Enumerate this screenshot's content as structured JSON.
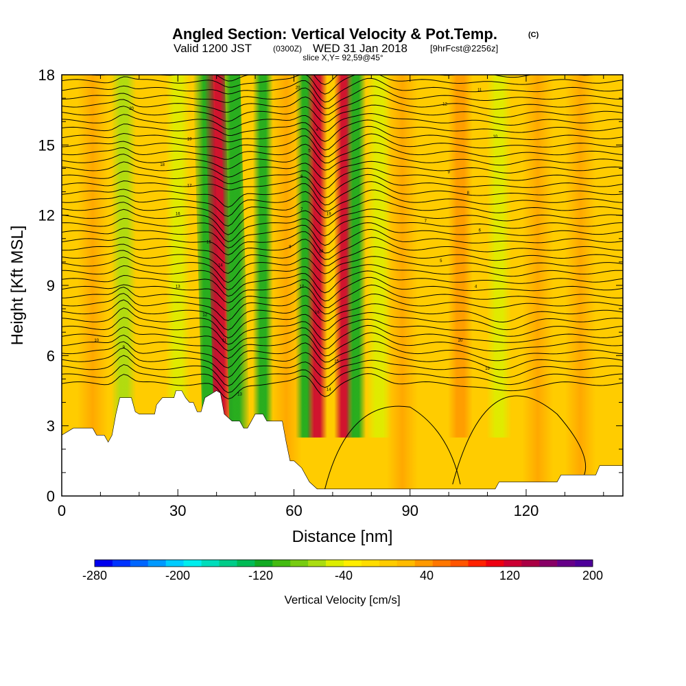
{
  "chart_data": {
    "type": "heatmap",
    "title": "Angled Section: Vertical Velocity & Pot.Temp.",
    "title_suffix": "(C)",
    "subtitle": {
      "valid": "Valid 1200 JST",
      "zulu": "(0300Z)",
      "date": "WED 31 Jan 2018",
      "forecast": "[9hrFcst@2256z]"
    },
    "slice_label": "slice X,Y= 92,59@45°",
    "xlabel": "Distance [nm]",
    "ylabel": "Height [Kft MSL]",
    "xlim": [
      0,
      145
    ],
    "ylim": [
      0,
      18
    ],
    "x_ticks": [
      0,
      30,
      60,
      90,
      120
    ],
    "y_ticks": [
      0,
      3,
      6,
      9,
      12,
      15,
      18
    ],
    "grid": false,
    "colorbar": {
      "label": "Vertical Velocity [cm/s]",
      "tick_labels": [
        "-280",
        "-200",
        "-120",
        "-40",
        "40",
        "120",
        "200"
      ],
      "min": -280,
      "max": 200,
      "colors": [
        "#0000ee",
        "#0033ff",
        "#0066ff",
        "#0099ff",
        "#00ccff",
        "#00eeee",
        "#00ddbb",
        "#00cc88",
        "#00bb55",
        "#11aa22",
        "#44bb11",
        "#77cc11",
        "#aadd11",
        "#ddee00",
        "#ffee00",
        "#ffdd00",
        "#ffcc00",
        "#ffbb00",
        "#ff9900",
        "#ff7700",
        "#ff5500",
        "#ff2200",
        "#ee0011",
        "#cc0033",
        "#aa0044",
        "#880066",
        "#660088",
        "#4d0099"
      ]
    },
    "vertical_velocity_bands": [
      {
        "x": 16,
        "value": -60
      },
      {
        "x": 30,
        "value": -50
      },
      {
        "x": 39,
        "value": -120
      },
      {
        "x": 42,
        "value": 120
      },
      {
        "x": 46,
        "value": -120
      },
      {
        "x": 52,
        "value": -110
      },
      {
        "x": 63,
        "value": -120
      },
      {
        "x": 66,
        "value": 130
      },
      {
        "x": 73,
        "value": 130
      },
      {
        "x": 76,
        "value": -110
      },
      {
        "x": 82,
        "value": -50
      },
      {
        "x": 103,
        "value": 40
      },
      {
        "x": 113,
        "value": -50
      }
    ],
    "terrain": [
      [
        0,
        2.6
      ],
      [
        3,
        2.9
      ],
      [
        8,
        2.9
      ],
      [
        9,
        2.6
      ],
      [
        11,
        2.6
      ],
      [
        12,
        2.3
      ],
      [
        13,
        2.6
      ],
      [
        14,
        3.5
      ],
      [
        15,
        4.2
      ],
      [
        18,
        4.2
      ],
      [
        18.5,
        3.9
      ],
      [
        19,
        3.6
      ],
      [
        20,
        3.5
      ],
      [
        24,
        3.5
      ],
      [
        24.5,
        3.9
      ],
      [
        26,
        4.2
      ],
      [
        29,
        4.2
      ],
      [
        29.5,
        4.5
      ],
      [
        31,
        4.5
      ],
      [
        32,
        4.2
      ],
      [
        33,
        4.0
      ],
      [
        34,
        4.0
      ],
      [
        35,
        3.6
      ],
      [
        36,
        3.6
      ],
      [
        37,
        4.2
      ],
      [
        40,
        4.5
      ],
      [
        41,
        4.4
      ],
      [
        42,
        3.5
      ],
      [
        44,
        3.2
      ],
      [
        46,
        3.2
      ],
      [
        47,
        2.9
      ],
      [
        48,
        2.9
      ],
      [
        50,
        3.5
      ],
      [
        52,
        3.5
      ],
      [
        53,
        3.2
      ],
      [
        57,
        3.2
      ],
      [
        58,
        2.3
      ],
      [
        59,
        1.5
      ],
      [
        60,
        1.5
      ],
      [
        62,
        1.2
      ],
      [
        64,
        0.6
      ],
      [
        66,
        0.3
      ],
      [
        112,
        0.3
      ],
      [
        113,
        0.6
      ],
      [
        120,
        0.6
      ],
      [
        128,
        0.6
      ],
      [
        129,
        0.9
      ],
      [
        138,
        0.9
      ],
      [
        139,
        1.3
      ],
      [
        145,
        1.3
      ]
    ],
    "isentrope_labels": [
      "20",
      "19",
      "18",
      "17",
      "16",
      "15",
      "14",
      "13",
      "12",
      "11",
      "10",
      "9",
      "8",
      "7",
      "6",
      "5",
      "4"
    ]
  }
}
